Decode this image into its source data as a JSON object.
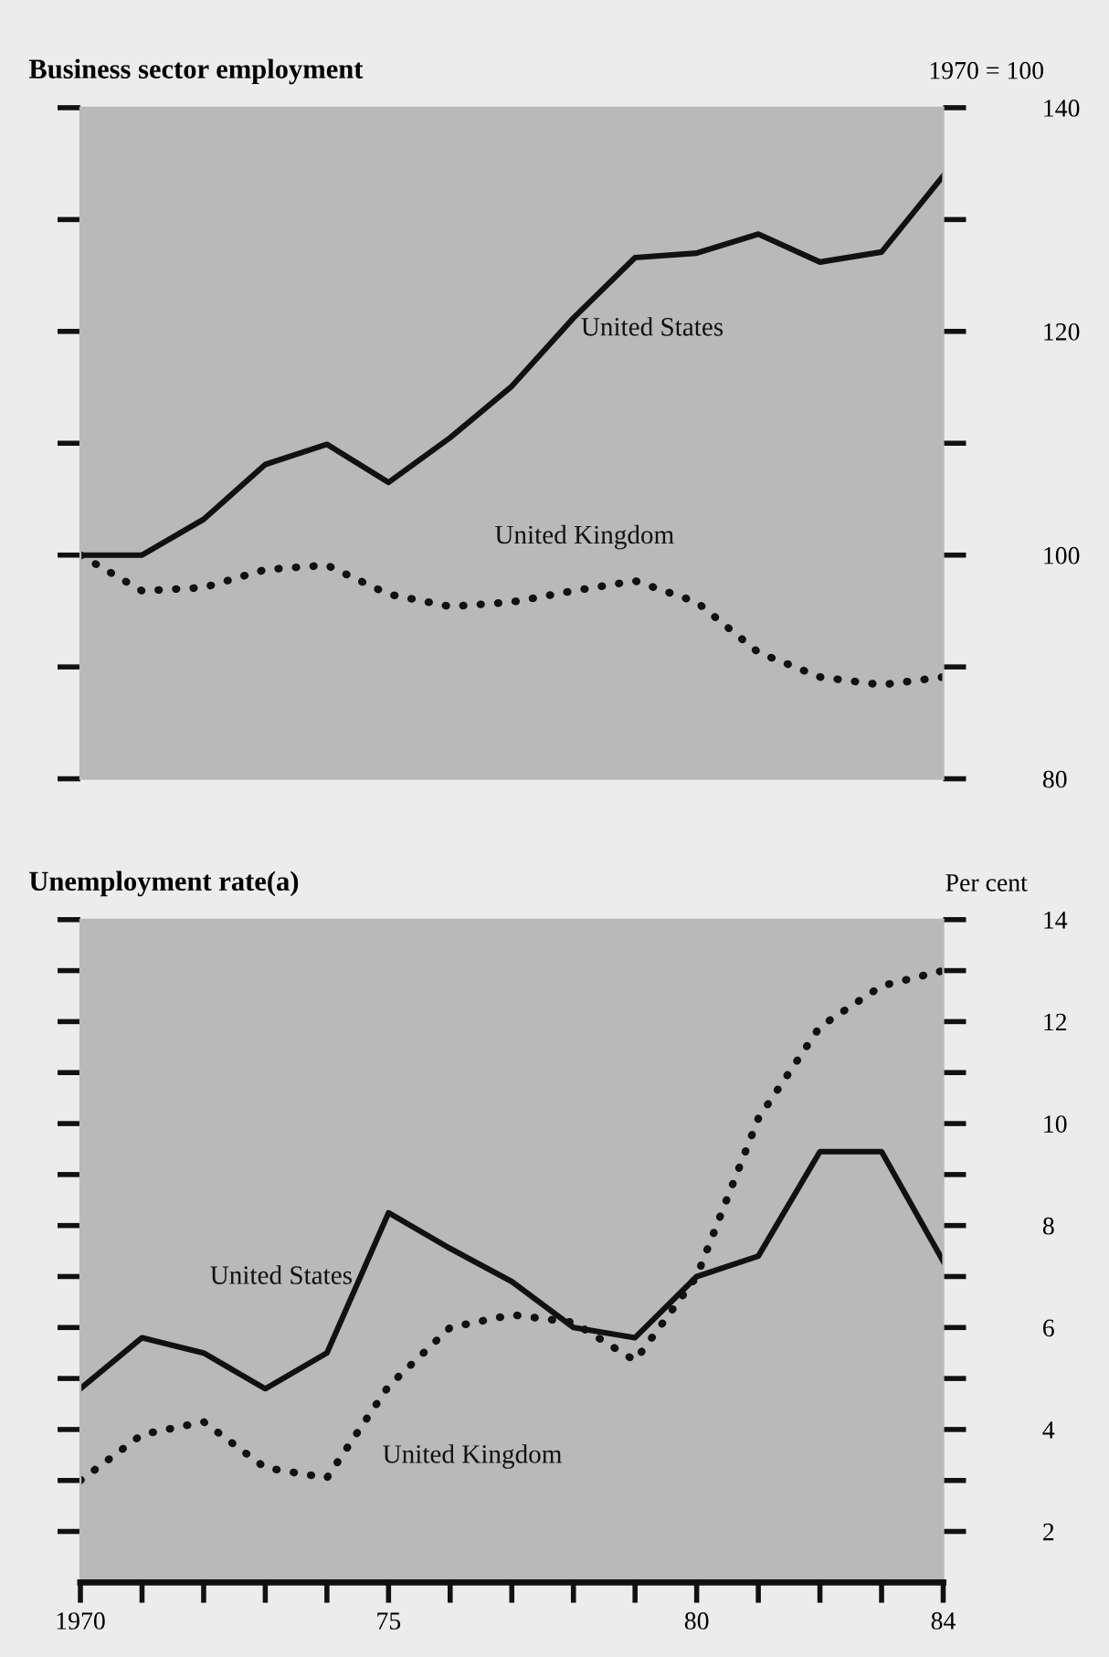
{
  "chart_data": [
    {
      "type": "line",
      "title": "Business sector employment",
      "ylabel": "1970 = 100",
      "x": [
        1970,
        1971,
        1972,
        1973,
        1974,
        1975,
        1976,
        1977,
        1978,
        1979,
        1980,
        1981,
        1982,
        1983,
        1984
      ],
      "xlim": [
        1970,
        1984
      ],
      "ylim": [
        80,
        140
      ],
      "yticks": [
        80,
        {
          "value": 90,
          "label": null
        },
        100,
        {
          "value": 110,
          "label": null
        },
        120,
        {
          "value": 130,
          "label": null
        },
        140
      ],
      "tick_labels": "y",
      "grid": false,
      "legend": false,
      "marker": "none",
      "series": [
        {
          "name": "United States",
          "color": "#111111",
          "line_style": "solid",
          "values": [
            100,
            100,
            103.2,
            108.1,
            109.9,
            106.5,
            110.5,
            115.1,
            121.2,
            126.6,
            127.0,
            128.7,
            126.2,
            127.1,
            133.9
          ]
        },
        {
          "name": "United Kingdom",
          "color": "#111111",
          "line_style": "dotted",
          "values": [
            100,
            96.8,
            97.1,
            98.7,
            99.1,
            96.5,
            95.4,
            95.8,
            96.8,
            97.7,
            95.8,
            91.3,
            89.1,
            88.4,
            89.1
          ]
        }
      ]
    },
    {
      "type": "line",
      "title": "Unemployment rate(a)",
      "ylabel": "Per cent",
      "x": [
        1970,
        1971,
        1972,
        1973,
        1974,
        1975,
        1976,
        1977,
        1978,
        1979,
        1980,
        1981,
        1982,
        1983,
        1984
      ],
      "xlim": [
        1970,
        1984
      ],
      "ylim": [
        1,
        14
      ],
      "xticks": [
        1970,
        {
          "value": 1971,
          "label": null
        },
        {
          "value": 1972,
          "label": null
        },
        {
          "value": 1973,
          "label": null
        },
        {
          "value": 1974,
          "label": null
        },
        {
          "value": 1975,
          "label": "75"
        },
        {
          "value": 1976,
          "label": null
        },
        {
          "value": 1977,
          "label": null
        },
        {
          "value": 1978,
          "label": null
        },
        {
          "value": 1979,
          "label": null
        },
        {
          "value": 1980,
          "label": "80"
        },
        {
          "value": 1981,
          "label": null
        },
        {
          "value": 1982,
          "label": null
        },
        {
          "value": 1983,
          "label": null
        },
        {
          "value": 1984,
          "label": "84"
        }
      ],
      "yticks": [
        2,
        {
          "value": 3,
          "label": null
        },
        4,
        {
          "value": 5,
          "label": null
        },
        6,
        {
          "value": 7,
          "label": null
        },
        8,
        {
          "value": 9,
          "label": null
        },
        10,
        {
          "value": 11,
          "label": null
        },
        12,
        {
          "value": 13,
          "label": null
        },
        14
      ],
      "grid": false,
      "legend": false,
      "marker": "none",
      "series": [
        {
          "name": "United States",
          "color": "#111111",
          "line_style": "solid",
          "values": [
            4.8,
            5.8,
            5.5,
            4.8,
            5.5,
            8.25,
            7.55,
            6.9,
            6.0,
            5.8,
            7.0,
            7.4,
            9.45,
            9.45,
            7.3
          ]
        },
        {
          "name": "United Kingdom",
          "color": "#111111",
          "line_style": "dotted",
          "values": [
            3.0,
            3.9,
            4.15,
            3.25,
            3.05,
            4.85,
            6.0,
            6.25,
            6.1,
            5.35,
            7.0,
            10.1,
            11.9,
            12.7,
            13.0
          ]
        }
      ]
    }
  ]
}
